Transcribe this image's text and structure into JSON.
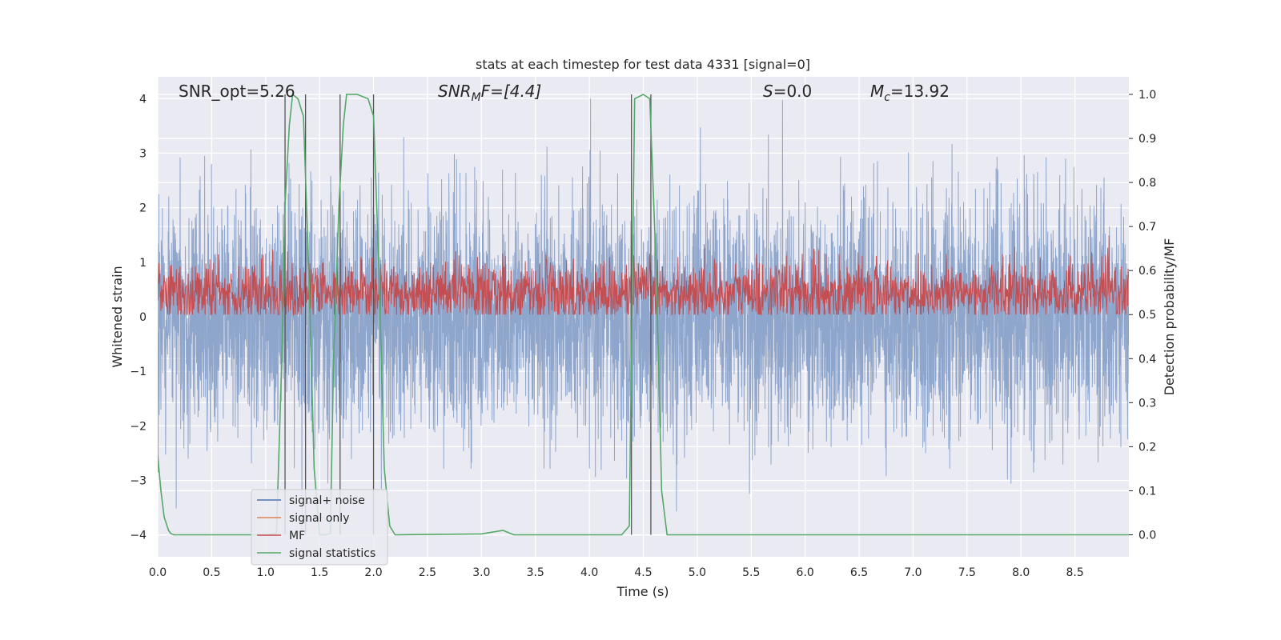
{
  "chart_data": {
    "type": "line",
    "title": "stats at each timestep for test data 4331 [signal=0]",
    "xlabel": "Time (s)",
    "ylabel_left": "Whitened strain",
    "ylabel_right": "Detection probability/MF",
    "xlim": [
      0.0,
      9.0
    ],
    "ylim_left": [
      -4.4,
      4.4
    ],
    "ylim_right": [
      -0.05,
      1.04
    ],
    "xticks": [
      "0.0",
      "0.5",
      "1.0",
      "1.5",
      "2.0",
      "2.5",
      "3.0",
      "3.5",
      "4.0",
      "4.5",
      "5.0",
      "5.5",
      "6.0",
      "6.5",
      "7.0",
      "7.5",
      "8.0",
      "8.5"
    ],
    "yticks_left": [
      "−4",
      "−3",
      "−2",
      "−1",
      "0",
      "1",
      "2",
      "3",
      "4"
    ],
    "yticks_right": [
      "0.0",
      "0.1",
      "0.2",
      "0.3",
      "0.4",
      "0.5",
      "0.6",
      "0.7",
      "0.8",
      "0.9",
      "1.0"
    ],
    "annotations": {
      "snr_opt": "SNR_opt=5.26",
      "snr_mf_sym": "SNR",
      "snr_mf_sub": "M",
      "snr_mf_rest": "F=[4.4]",
      "s_sym": "S",
      "s_rest": "=0.0",
      "mc_sym": "M",
      "mc_sub": "c",
      "mc_rest": "=13.92"
    },
    "legend": [
      {
        "label": "signal+ noise",
        "color": "#4c72b0"
      },
      {
        "label": "signal only",
        "color": "#dd8452"
      },
      {
        "label": "MF",
        "color": "#c44e52"
      },
      {
        "label": "signal statistics",
        "color": "#55a868"
      }
    ],
    "signal_noise": {
      "color": "#8fa6cc",
      "mean": 0.0,
      "std": 1.05,
      "spikes_up_max": 4.0,
      "spikes_down_min": -4.0
    },
    "mf": {
      "color": "#c44e52",
      "range": [
        0.05,
        0.75
      ]
    },
    "signal_statistics": {
      "color": "#55a868",
      "x": [
        0.0,
        0.03,
        0.06,
        0.1,
        0.12,
        0.15,
        0.2,
        1.0,
        1.1,
        1.15,
        1.18,
        1.22,
        1.25,
        1.3,
        1.35,
        1.4,
        1.45,
        1.5,
        1.55,
        1.6,
        1.63,
        1.68,
        1.72,
        1.75,
        1.85,
        1.95,
        2.0,
        2.05,
        2.1,
        2.15,
        2.2,
        3.0,
        3.2,
        3.3,
        4.0,
        4.3,
        4.37,
        4.42,
        4.5,
        4.56,
        4.62,
        4.67,
        4.72,
        5.0,
        9.0
      ],
      "y": [
        0.18,
        0.1,
        0.04,
        0.01,
        0.003,
        0.0,
        0.0,
        0.0,
        0.003,
        0.4,
        0.75,
        0.93,
        1.0,
        0.99,
        0.95,
        0.6,
        0.15,
        0.0,
        0.0,
        0.003,
        0.4,
        0.75,
        0.93,
        1.0,
        1.0,
        0.99,
        0.95,
        0.6,
        0.15,
        0.02,
        0.0,
        0.002,
        0.01,
        0.0,
        0.0,
        0.0,
        0.02,
        0.99,
        1.0,
        0.99,
        0.6,
        0.1,
        0.0,
        0.0,
        0.0
      ]
    },
    "vertical_markers": [
      1.18,
      1.37,
      1.69,
      2.0,
      4.39,
      4.57
    ]
  }
}
